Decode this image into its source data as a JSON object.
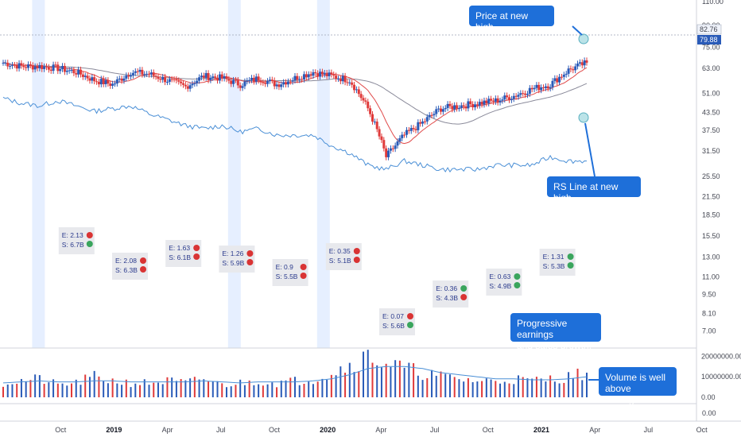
{
  "chart_data": {
    "type": "candlestick",
    "symbol_note": "",
    "y_axis_main": {
      "scale": "log",
      "range": [
        6.4,
        110
      ],
      "tick_labels": [
        "110.00",
        "90.00",
        "75.00",
        "63.00",
        "51.00",
        "43.50",
        "37.50",
        "31.50",
        "25.50",
        "21.50",
        "18.50",
        "15.50",
        "13.00",
        "11.00",
        "9.50",
        "8.10",
        "7.00"
      ]
    },
    "y_axis_volume": {
      "range": [
        0,
        24000000
      ],
      "tick_labels": [
        "20000000.00",
        "10000000.00",
        "0.00"
      ]
    },
    "y_axis_extra": {
      "tick_labels": [
        "0.00"
      ]
    },
    "x_axis": {
      "tick_labels": [
        "Oct",
        "2019",
        "Apr",
        "Jul",
        "Oct",
        "2020",
        "Apr",
        "Jul",
        "Oct",
        "2021",
        "Apr",
        "Jul",
        "Oct"
      ],
      "bold_labels": [
        "2019",
        "2020",
        "2021"
      ],
      "tick_dates": [
        "2018-10",
        "2019-01",
        "2019-04",
        "2019-07",
        "2019-10",
        "2020-01",
        "2020-04",
        "2020-07",
        "2020-10",
        "2021-01",
        "2021-04",
        "2021-07",
        "2021-10"
      ]
    },
    "price_badges": [
      {
        "value": "82.76",
        "kind": "reference"
      },
      {
        "value": "79.88",
        "kind": "last"
      }
    ],
    "earnings_periods": [
      "2018-09",
      "2018-12",
      "2019-03",
      "2019-06",
      "2019-09",
      "2019-12",
      "2020-03",
      "2020-06",
      "2020-09",
      "2020-12"
    ],
    "earnings": [
      {
        "e_label": "E: 2.13",
        "s_label": "S: 6.7B",
        "e_status": "red",
        "s_status": "green"
      },
      {
        "e_label": "E: 2.08",
        "s_label": "S: 6.3B",
        "e_status": "red",
        "s_status": "red"
      },
      {
        "e_label": "E: 1.63",
        "s_label": "S: 6.1B",
        "e_status": "red",
        "s_status": "red"
      },
      {
        "e_label": "E: 1.26",
        "s_label": "S: 5.9B",
        "e_status": "red",
        "s_status": "red"
      },
      {
        "e_label": "E: 0.9",
        "s_label": "S: 5.5B",
        "e_status": "red",
        "s_status": "red"
      },
      {
        "e_label": "E: 0.35",
        "s_label": "S: 5.1B",
        "e_status": "red",
        "s_status": "red"
      },
      {
        "e_label": "E: 0.07",
        "s_label": "S: 5.6B",
        "e_status": "red",
        "s_status": "green"
      },
      {
        "e_label": "E: 0.36",
        "s_label": "S: 4.3B",
        "e_status": "green",
        "s_status": "red"
      },
      {
        "e_label": "E: 0.63",
        "s_label": "S: 4.9B",
        "e_status": "green",
        "s_status": "green"
      },
      {
        "e_label": "E: 1.31",
        "s_label": "S: 5.3B",
        "e_status": "green",
        "s_status": "green"
      }
    ],
    "price_dates_range": [
      "2018-07",
      "2021-03"
    ],
    "price_close_monthly": [
      66,
      64,
      64,
      63,
      61,
      57,
      55,
      61,
      60,
      57,
      54,
      59,
      58,
      55,
      58,
      55,
      58,
      61,
      59,
      57,
      45,
      30,
      36,
      40,
      45,
      46,
      47,
      48,
      50,
      53,
      55,
      62,
      66,
      68,
      76,
      80
    ],
    "rs_line_monthly": [
      49,
      47,
      46,
      48,
      46,
      44,
      45,
      46,
      43,
      41,
      39,
      38,
      39,
      37,
      38,
      36,
      36,
      36,
      33,
      31,
      28,
      27,
      29,
      28,
      27,
      27,
      27,
      28,
      28,
      28,
      30,
      29,
      29,
      33,
      40,
      43
    ],
    "volume_monthly_millions": [
      7,
      8,
      9,
      6,
      7,
      10,
      8,
      7,
      7,
      8,
      7,
      9,
      6,
      7,
      8,
      7,
      8,
      9,
      12,
      16,
      20,
      17,
      14,
      12,
      10,
      9,
      8,
      8,
      9,
      8,
      9,
      10,
      12,
      15,
      19,
      21
    ],
    "volume_avg_millions": [
      7,
      7.5,
      8,
      7.5,
      7.5,
      8,
      8,
      7.5,
      7.5,
      7.5,
      7.5,
      8,
      7.5,
      7,
      7.5,
      7.5,
      7.5,
      8,
      9,
      11,
      14,
      15,
      15,
      14,
      12,
      11,
      10,
      9,
      9,
      8.5,
      8.5,
      9,
      10,
      11,
      13,
      15
    ]
  },
  "annotations": {
    "price_high": "Price at new high.",
    "rs_high": "RS Line at new high.",
    "earnings_growth": "Progressive earnings\nand sales growth.",
    "volume_note": "Volume is well\n above average."
  },
  "colors": {
    "up": "#2a5bb8",
    "down": "#e03a3a",
    "rs_line": "#4a8fd6",
    "ma_fast": "#e04a4a",
    "ma_slow": "#8a8a9a",
    "highlight_band": "#e6efff",
    "callout": "#1e6fd9",
    "dot_green": "#3aa55d",
    "dot_red": "#d93434"
  }
}
